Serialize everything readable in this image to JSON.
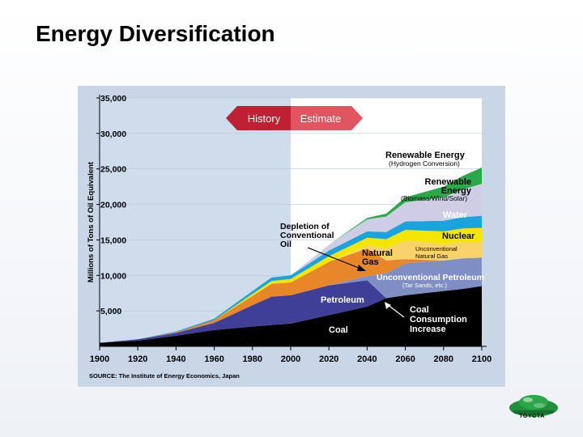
{
  "slide": {
    "title": "Energy Diversification",
    "logo_text": "TOYOTA",
    "logo_icon": "green-globe-car-icon"
  },
  "chart_data": {
    "type": "area",
    "stacked": true,
    "ylabel": "Millions of Tons of Oil Equivalent",
    "xlabel": "",
    "xlim": [
      1900,
      2100
    ],
    "ylim": [
      0,
      35000
    ],
    "x_ticks": [
      1900,
      1920,
      1940,
      1960,
      1980,
      2000,
      2020,
      2040,
      2060,
      2080,
      2100
    ],
    "y_ticks": [
      5000,
      10000,
      15000,
      20000,
      25000,
      30000,
      35000
    ],
    "y_tick_labels": [
      "5,000",
      "10,000",
      "15,000",
      "20,000",
      "25,000",
      "30,000",
      "35,000"
    ],
    "source": "SOURCE: The Institute of Energy Economics, Japan",
    "history_label": "History",
    "estimate_label": "Estimate",
    "estimate_start": 2000,
    "x": [
      1900,
      1920,
      1940,
      1960,
      1980,
      1990,
      2000,
      2020,
      2040,
      2050,
      2060,
      2080,
      2090,
      2100
    ],
    "series": [
      {
        "name": "Coal",
        "color": "#000000",
        "values": [
          500,
          800,
          1500,
          2300,
          2800,
          3000,
          3200,
          4400,
          5600,
          6800,
          7200,
          7800,
          8100,
          8500
        ]
      },
      {
        "name": "Petroleum",
        "color": "#3f3f98",
        "values": [
          0,
          200,
          400,
          1000,
          3000,
          4000,
          4000,
          4200,
          3700,
          0,
          0,
          0,
          0,
          0
        ]
      },
      {
        "name": "Unconventional Petroleum",
        "color": "#7f8fc6",
        "values": [
          0,
          0,
          0,
          0,
          0,
          0,
          0,
          0,
          600,
          3500,
          4500,
          4300,
          4300,
          4000
        ]
      },
      {
        "name": "Natural Gas",
        "color": "#e8862a",
        "values": [
          0,
          0,
          100,
          400,
          1300,
          1800,
          1800,
          3300,
          3900,
          1800,
          600,
          0,
          0,
          0
        ]
      },
      {
        "name": "Unconventional Natural Gas",
        "color": "#f7d36a",
        "values": [
          0,
          0,
          0,
          0,
          0,
          0,
          0,
          0,
          400,
          1700,
          2600,
          2300,
          2300,
          2200
        ]
      },
      {
        "name": "Nuclear",
        "color": "#f5e600",
        "values": [
          0,
          0,
          0,
          0,
          300,
          400,
          500,
          800,
          1100,
          1300,
          1500,
          1800,
          1900,
          2000
        ]
      },
      {
        "name": "Water",
        "color": "#1aa3dc",
        "values": [
          0,
          0,
          100,
          200,
          400,
          500,
          500,
          800,
          900,
          1000,
          1200,
          1500,
          1600,
          1700
        ]
      },
      {
        "name": "Renewable Energy (Biomass/Wind/Solar)",
        "color": "#cfcde6",
        "values": [
          0,
          0,
          0,
          0,
          0,
          0,
          0,
          800,
          1700,
          2200,
          2700,
          3300,
          3900,
          4500
        ]
      },
      {
        "name": "Renewable Energy (Hydrogen Conversion)",
        "color": "#2aa84a",
        "values": [
          0,
          0,
          0,
          0,
          0,
          0,
          0,
          0,
          200,
          400,
          700,
          1500,
          1900,
          2300
        ]
      }
    ],
    "annotations": {
      "renewable_hydrogen": [
        "Renewable Energy",
        "(Hydrogen Conversion)"
      ],
      "renewable_bws": [
        "Renewable",
        "Energy",
        "(Biomass/Wind/Solar)"
      ],
      "water": "Water",
      "nuclear": "Nuclear",
      "unconv_gas": [
        "Unconventional",
        "Natural Gas"
      ],
      "unconv_petroleum": [
        "Unconventional Petroleum",
        "(Tar Sands, etc.)"
      ],
      "natural_gas": [
        "Natural",
        "Gas"
      ],
      "depletion": [
        "Depletion of",
        "Conventional",
        "Oil"
      ],
      "petroleum": "Petroleum",
      "coal": "Coal",
      "coal_increase": [
        "Coal",
        "Consumption",
        "Increase"
      ]
    }
  }
}
